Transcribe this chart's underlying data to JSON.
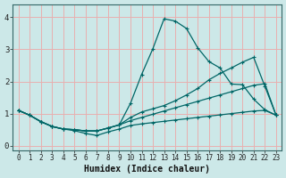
{
  "xlabel": "Humidex (Indice chaleur)",
  "bg_color": "#cce8e8",
  "plot_bg_color": "#cce8e8",
  "grid_color": "#e8b0b0",
  "line_color": "#006666",
  "xlim": [
    -0.5,
    23.5
  ],
  "ylim": [
    -0.15,
    4.4
  ],
  "xticks": [
    0,
    1,
    2,
    3,
    4,
    5,
    6,
    7,
    8,
    9,
    10,
    11,
    12,
    13,
    14,
    15,
    16,
    17,
    18,
    19,
    20,
    21,
    22,
    23
  ],
  "yticks": [
    0,
    1,
    2,
    3,
    4
  ],
  "line1_x": [
    0,
    1,
    2,
    3,
    4,
    5,
    6,
    7,
    8,
    9,
    10,
    11,
    12,
    13,
    14,
    15,
    16,
    17,
    18,
    19,
    20,
    21,
    22,
    23
  ],
  "line1_y": [
    1.1,
    0.95,
    0.75,
    0.6,
    0.52,
    0.47,
    0.38,
    0.32,
    0.43,
    0.52,
    0.63,
    0.68,
    0.72,
    0.76,
    0.8,
    0.84,
    0.88,
    0.92,
    0.96,
    1.0,
    1.04,
    1.08,
    1.1,
    0.95
  ],
  "line2_x": [
    0,
    1,
    2,
    3,
    4,
    5,
    6,
    7,
    8,
    9,
    10,
    11,
    12,
    13,
    14,
    15,
    16,
    17,
    18,
    19,
    20,
    21,
    22,
    23
  ],
  "line2_y": [
    1.1,
    0.95,
    0.75,
    0.6,
    0.52,
    0.5,
    0.46,
    0.46,
    0.55,
    0.65,
    0.78,
    0.88,
    0.98,
    1.08,
    1.18,
    1.28,
    1.38,
    1.48,
    1.58,
    1.68,
    1.78,
    1.88,
    1.93,
    0.95
  ],
  "line3_x": [
    0,
    1,
    2,
    3,
    4,
    5,
    6,
    7,
    8,
    9,
    10,
    11,
    12,
    13,
    14,
    15,
    16,
    17,
    18,
    19,
    20,
    21,
    22,
    23
  ],
  "line3_y": [
    1.1,
    0.95,
    0.75,
    0.6,
    0.52,
    0.5,
    0.46,
    0.46,
    0.55,
    0.65,
    0.88,
    1.05,
    1.15,
    1.25,
    1.4,
    1.58,
    1.78,
    2.05,
    2.25,
    2.42,
    2.6,
    2.75,
    1.85,
    0.95
  ],
  "line4_x": [
    0,
    1,
    2,
    3,
    4,
    5,
    6,
    7,
    8,
    9,
    10,
    11,
    12,
    13,
    14,
    15,
    16,
    17,
    18,
    19,
    20,
    21,
    22,
    23
  ],
  "line4_y": [
    1.1,
    0.95,
    0.75,
    0.6,
    0.52,
    0.5,
    0.46,
    0.46,
    0.55,
    0.65,
    1.32,
    2.22,
    3.02,
    3.95,
    3.88,
    3.65,
    3.05,
    2.62,
    2.42,
    1.92,
    1.9,
    1.45,
    1.12,
    0.95
  ]
}
